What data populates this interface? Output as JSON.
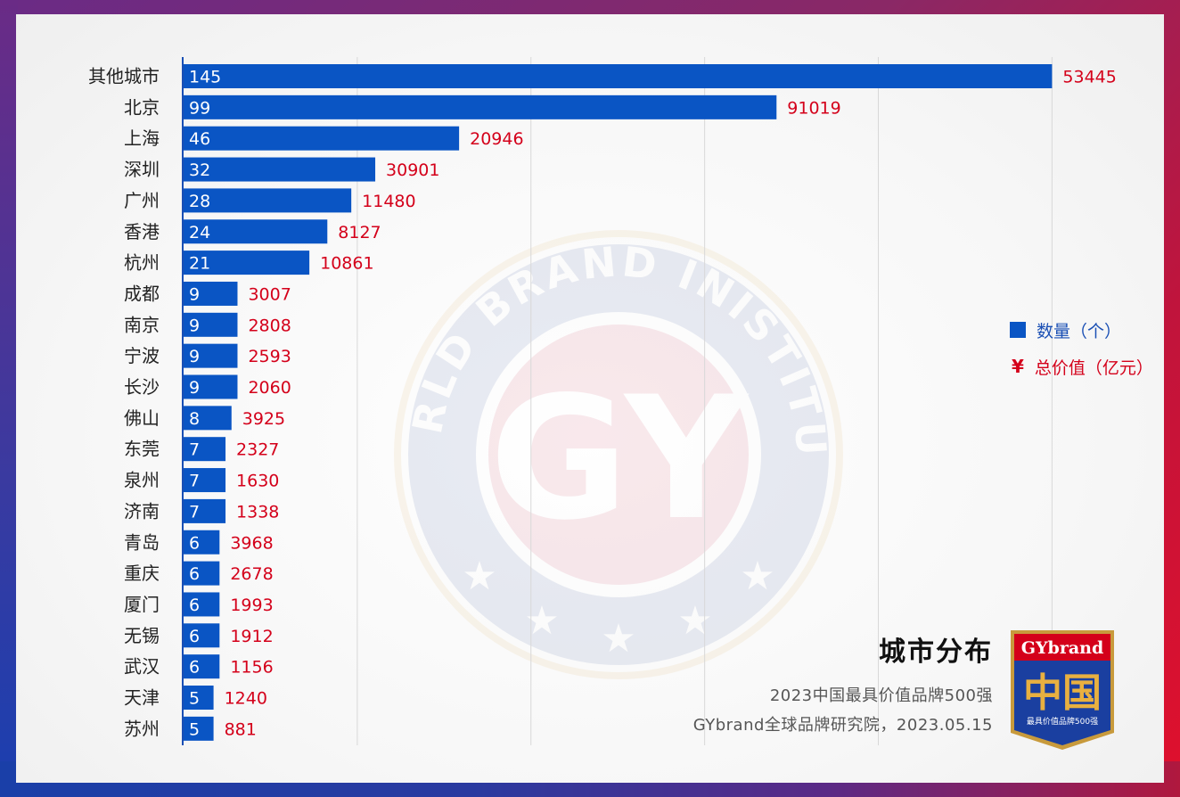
{
  "chart_data": {
    "type": "bar",
    "orientation": "horizontal",
    "categories": [
      "其他城市",
      "北京",
      "上海",
      "深圳",
      "广州",
      "香港",
      "杭州",
      "成都",
      "南京",
      "宁波",
      "长沙",
      "佛山",
      "东莞",
      "泉州",
      "济南",
      "青岛",
      "重庆",
      "厦门",
      "无锡",
      "武汉",
      "天津",
      "苏州"
    ],
    "series": [
      {
        "name": "数量（个）",
        "values": [
          145,
          99,
          46,
          32,
          28,
          24,
          21,
          9,
          9,
          9,
          9,
          8,
          7,
          7,
          7,
          6,
          6,
          6,
          6,
          6,
          5,
          5
        ],
        "color": "#0a55c4"
      },
      {
        "name": "总价值（亿元）",
        "values": [
          53445,
          91019,
          20946,
          30901,
          11480,
          8127,
          10861,
          3007,
          2808,
          2593,
          2060,
          3925,
          2327,
          1630,
          1338,
          3968,
          2678,
          1993,
          1912,
          1156,
          1240,
          881
        ],
        "color": "#d4001a"
      }
    ],
    "title": "城市分布",
    "grid": true,
    "legend_position": "right"
  },
  "legend": {
    "count_label": "数量（个）",
    "value_label": "总价值（亿元）",
    "yen_symbol": "¥"
  },
  "heading": {
    "title": "城市分布",
    "subtitle_line1": "2023中国最具价值品牌500强",
    "subtitle_line2": "GYbrand全球品牌研究院，2023.05.15"
  },
  "badge": {
    "brand": "GYbrand",
    "big_text": "中国",
    "caption": "最具价值品牌500强"
  },
  "watermark": {
    "arc_text": "WORLD BRAND INISTITUTE",
    "center_text": "GY"
  }
}
